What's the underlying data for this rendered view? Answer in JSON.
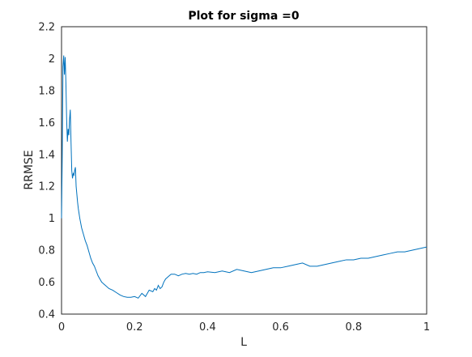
{
  "chart_data": {
    "type": "line",
    "title": "Plot for sigma =0",
    "xlabel": "L",
    "ylabel": "RRMSE",
    "xlim": [
      0,
      1
    ],
    "ylim": [
      0.4,
      2.2
    ],
    "xticks": [
      "0",
      "0.2",
      "0.4",
      "0.6",
      "0.8",
      "1"
    ],
    "yticks": [
      "0.4",
      "0.6",
      "0.8",
      "1",
      "1.2",
      "1.4",
      "1.6",
      "1.8",
      "2",
      "2.2"
    ],
    "grid": false,
    "legend": "none",
    "line_color": "#0072BD",
    "series": [
      {
        "x": [
          0.0,
          0.002,
          0.004,
          0.006,
          0.008,
          0.01,
          0.012,
          0.014,
          0.016,
          0.018,
          0.02,
          0.022,
          0.024,
          0.026,
          0.028,
          0.03,
          0.032,
          0.034,
          0.036,
          0.038,
          0.04,
          0.042,
          0.044,
          0.046,
          0.048,
          0.05,
          0.055,
          0.06,
          0.065,
          0.07,
          0.075,
          0.08,
          0.085,
          0.09,
          0.095,
          0.1,
          0.11,
          0.12,
          0.13,
          0.14,
          0.15,
          0.16,
          0.17,
          0.18,
          0.19,
          0.2,
          0.21,
          0.22,
          0.23,
          0.24,
          0.25,
          0.255,
          0.26,
          0.265,
          0.27,
          0.275,
          0.28,
          0.285,
          0.29,
          0.295,
          0.3,
          0.31,
          0.32,
          0.33,
          0.34,
          0.35,
          0.36,
          0.37,
          0.38,
          0.39,
          0.4,
          0.42,
          0.44,
          0.46,
          0.48,
          0.5,
          0.52,
          0.54,
          0.56,
          0.58,
          0.6,
          0.62,
          0.64,
          0.66,
          0.68,
          0.7,
          0.72,
          0.74,
          0.76,
          0.78,
          0.8,
          0.82,
          0.84,
          0.86,
          0.88,
          0.9,
          0.92,
          0.94,
          0.96,
          0.98,
          1.0
        ],
        "y": [
          1.0,
          1.4,
          1.95,
          2.02,
          1.9,
          2.01,
          1.85,
          1.62,
          1.48,
          1.56,
          1.52,
          1.62,
          1.68,
          1.48,
          1.3,
          1.25,
          1.28,
          1.27,
          1.3,
          1.32,
          1.2,
          1.15,
          1.1,
          1.06,
          1.03,
          1.0,
          0.94,
          0.9,
          0.86,
          0.83,
          0.79,
          0.75,
          0.72,
          0.7,
          0.67,
          0.64,
          0.6,
          0.58,
          0.56,
          0.55,
          0.535,
          0.52,
          0.51,
          0.505,
          0.505,
          0.51,
          0.5,
          0.53,
          0.51,
          0.55,
          0.54,
          0.56,
          0.55,
          0.58,
          0.56,
          0.57,
          0.6,
          0.62,
          0.63,
          0.64,
          0.65,
          0.65,
          0.64,
          0.65,
          0.655,
          0.65,
          0.655,
          0.65,
          0.66,
          0.66,
          0.665,
          0.66,
          0.67,
          0.66,
          0.68,
          0.67,
          0.66,
          0.67,
          0.68,
          0.69,
          0.69,
          0.7,
          0.71,
          0.72,
          0.7,
          0.7,
          0.71,
          0.72,
          0.73,
          0.74,
          0.74,
          0.75,
          0.75,
          0.76,
          0.77,
          0.78,
          0.79,
          0.79,
          0.8,
          0.81,
          0.82
        ]
      }
    ]
  }
}
